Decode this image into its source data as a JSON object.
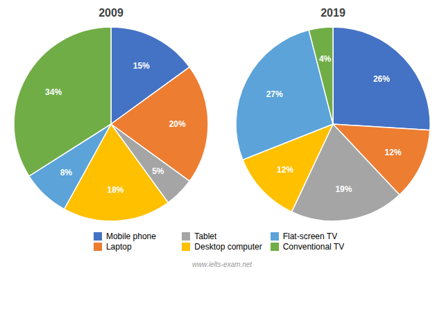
{
  "chart_data": [
    {
      "type": "pie",
      "title": "2009",
      "categories": [
        "Mobile phone",
        "Laptop",
        "Tablet",
        "Desktop computer",
        "Flat-screen TV",
        "Conventional TV"
      ],
      "values": [
        15,
        20,
        5,
        18,
        8,
        34
      ],
      "value_labels": [
        "15%",
        "20%",
        "5%",
        "18%",
        "8%",
        "34%"
      ],
      "colors": [
        "#4472C4",
        "#ED7D31",
        "#A5A5A5",
        "#FFC000",
        "#5BA3D9",
        "#70AD47"
      ],
      "data_labels": true,
      "legend": "bottom",
      "annotations": [
        "www.ielts-exam.net"
      ]
    },
    {
      "type": "pie",
      "title": "2019",
      "categories": [
        "Mobile phone",
        "Laptop",
        "Tablet",
        "Desktop computer",
        "Flat-screen TV",
        "Conventional TV"
      ],
      "values": [
        26,
        12,
        19,
        12,
        27,
        4
      ],
      "value_labels": [
        "26%",
        "12%",
        "19%",
        "12%",
        "27%",
        "4%"
      ],
      "colors": [
        "#4472C4",
        "#ED7D31",
        "#A5A5A5",
        "#FFC000",
        "#5BA3D9",
        "#70AD47"
      ],
      "data_labels": true,
      "legend": "bottom"
    }
  ]
}
